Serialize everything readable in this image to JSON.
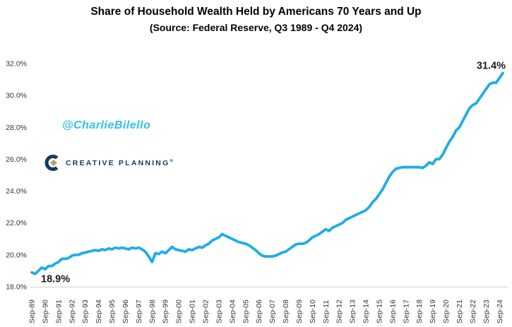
{
  "header": {
    "title": "Share of Household Wealth Held by Americans 70 Years and Up",
    "subtitle": "(Source: Federal Reserve, Q3 1989 - Q4 2024)"
  },
  "watermark": "@CharlieBilello",
  "logo": {
    "text": "CREATIVE PLANNING",
    "mark": "®"
  },
  "colors": {
    "line": "#1FADE8",
    "watermark": "#2FC0F2",
    "logo_navy": "#17395E",
    "logo_gold": "#B79C64",
    "axis_line": "#D9D9D9",
    "tick_text": "#333333",
    "annotation_text": "#1A1A1A"
  },
  "chart_data": {
    "type": "line",
    "title": "Share of Household Wealth Held by Americans 70 Years and Up",
    "subtitle": "(Source: Federal Reserve, Q3 1989 - Q4 2024)",
    "series_name": "Share of household wealth held by Americans 70 years and up",
    "frequency": "quarterly",
    "x_start": "1989-Q3",
    "x_end": "2024-Q4",
    "grid": false,
    "legend": "none",
    "ylim": [
      18,
      32
    ],
    "y_ticks": [
      {
        "value": 18,
        "label": "18.0%"
      },
      {
        "value": 20,
        "label": "20.0%"
      },
      {
        "value": 22,
        "label": "22.0%"
      },
      {
        "value": 24,
        "label": "24.0%"
      },
      {
        "value": 26,
        "label": "26.0%"
      },
      {
        "value": 28,
        "label": "28.0%"
      },
      {
        "value": 30,
        "label": "30.0%"
      },
      {
        "value": 32,
        "label": "32.0%"
      }
    ],
    "x_tick_labels": [
      "Sep-89",
      "Sep-90",
      "Sep-91",
      "Sep-92",
      "Sep-93",
      "Sep-94",
      "Sep-95",
      "Sep-96",
      "Sep-97",
      "Sep-98",
      "Sep-99",
      "Sep-00",
      "Sep-01",
      "Sep-02",
      "Sep-03",
      "Sep-04",
      "Sep-05",
      "Sep-06",
      "Sep-07",
      "Sep-08",
      "Sep-09",
      "Sep-10",
      "Sep-11",
      "Sep-12",
      "Sep-13",
      "Sep-14",
      "Sep-15",
      "Sep-16",
      "Sep-17",
      "Sep-18",
      "Sep-19",
      "Sep-20",
      "Sep-21",
      "Sep-22",
      "Sep-23",
      "Sep-24"
    ],
    "x_tick_every_n_points": 4,
    "values": [
      18.9,
      18.8,
      19.0,
      19.2,
      19.1,
      19.3,
      19.3,
      19.45,
      19.55,
      19.75,
      19.75,
      19.8,
      19.95,
      20.0,
      20.0,
      20.1,
      20.15,
      20.2,
      20.25,
      20.3,
      20.25,
      20.35,
      20.3,
      20.4,
      20.35,
      20.45,
      20.4,
      20.45,
      20.4,
      20.35,
      20.45,
      20.4,
      20.45,
      20.35,
      20.2,
      19.9,
      19.55,
      20.1,
      20.05,
      20.2,
      20.1,
      20.3,
      20.5,
      20.35,
      20.3,
      20.25,
      20.2,
      20.35,
      20.3,
      20.4,
      20.5,
      20.45,
      20.6,
      20.7,
      20.9,
      21.0,
      21.1,
      21.3,
      21.2,
      21.1,
      21.0,
      20.9,
      20.8,
      20.75,
      20.7,
      20.6,
      20.45,
      20.3,
      20.1,
      19.95,
      19.9,
      19.9,
      19.9,
      19.95,
      20.05,
      20.15,
      20.2,
      20.35,
      20.5,
      20.65,
      20.7,
      20.7,
      20.75,
      20.9,
      21.1,
      21.2,
      21.3,
      21.45,
      21.6,
      21.5,
      21.7,
      21.8,
      21.9,
      22.0,
      22.2,
      22.3,
      22.4,
      22.5,
      22.6,
      22.7,
      22.8,
      23.0,
      23.3,
      23.5,
      23.8,
      24.1,
      24.5,
      24.9,
      25.2,
      25.4,
      25.45,
      25.5,
      25.5,
      25.5,
      25.5,
      25.5,
      25.5,
      25.45,
      25.6,
      25.8,
      25.7,
      26.0,
      26.0,
      26.3,
      26.7,
      27.1,
      27.4,
      27.8,
      28.0,
      28.4,
      28.8,
      29.2,
      29.4,
      29.5,
      29.8,
      30.1,
      30.4,
      30.7,
      30.8,
      30.8,
      31.1,
      31.4
    ],
    "annotations": [
      {
        "text": "18.9%",
        "attach": "start"
      },
      {
        "text": "31.4%",
        "attach": "end"
      }
    ]
  }
}
